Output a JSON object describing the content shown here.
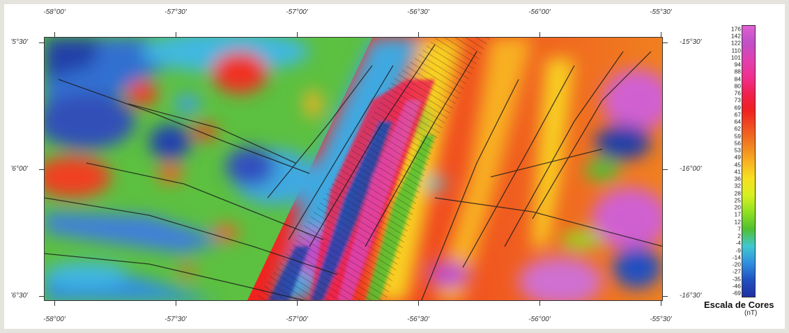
{
  "map": {
    "lon_ticks": [
      "-58°00'",
      "-57°30'",
      "-57°00'",
      "-56°30'",
      "-56°00'",
      "-55°30'"
    ],
    "lat_ticks_left": [
      "ʹ5°30'",
      "ʹ6°00'",
      "ʹ6°30'"
    ],
    "lat_ticks_right": [
      "-15°30'",
      "-16°00'",
      "-16°30'"
    ]
  },
  "legend": {
    "title": "Escala de Cores",
    "unit": "(nT)",
    "labels": [
      "176",
      "142",
      "122",
      "110",
      "101",
      "94",
      "88",
      "84",
      "80",
      "76",
      "73",
      "69",
      "67",
      "64",
      "62",
      "59",
      "56",
      "53",
      "49",
      "45",
      "41",
      "36",
      "32",
      "28",
      "25",
      "20",
      "17",
      "12",
      "7",
      "2",
      "-4",
      "-9",
      "-14",
      "-20",
      "-27",
      "-35",
      "-46",
      "-69"
    ]
  },
  "colors": {
    "frame_bg": "#e4e4dc",
    "scale": [
      "#e060d0",
      "#c050c8",
      "#e040b0",
      "#f03090",
      "#f02050",
      "#f02020",
      "#f05020",
      "#f08020",
      "#f8b020",
      "#f8e020",
      "#d8f020",
      "#90e020",
      "#50c030",
      "#40c8d0",
      "#3090e0",
      "#2050c0",
      "#2030a0"
    ]
  }
}
